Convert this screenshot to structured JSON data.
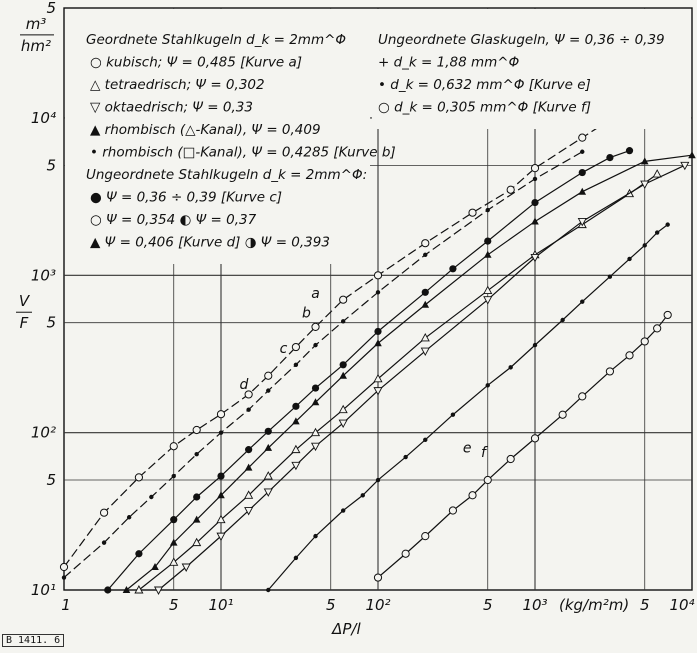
{
  "chart_data": {
    "type": "scatter",
    "xscale": "log",
    "yscale": "log",
    "xlim": [
      1,
      10000
    ],
    "ylim": [
      10,
      50000
    ],
    "grid": true,
    "xlabel": "ΔP/l",
    "xunit": "(kg/m²m)",
    "ylabel_top": "V",
    "ylabel_bottom": "F",
    "yunit_num": "m³",
    "yunit_den": "hm²",
    "x_ticks": [
      {
        "v": 1,
        "t": "1"
      },
      {
        "v": 5,
        "t": "5"
      },
      {
        "v": 10,
        "t": "10¹"
      },
      {
        "v": 50,
        "t": "5"
      },
      {
        "v": 100,
        "t": "10²"
      },
      {
        "v": 500,
        "t": "5"
      },
      {
        "v": 1000,
        "t": "10³"
      },
      {
        "v": 5000,
        "t": "5"
      },
      {
        "v": 10000,
        "t": "10⁴"
      }
    ],
    "y_ticks": [
      {
        "v": 10,
        "t": "10¹"
      },
      {
        "v": 50,
        "t": "5"
      },
      {
        "v": 100,
        "t": "10²"
      },
      {
        "v": 500,
        "t": "5"
      },
      {
        "v": 1000,
        "t": "10³"
      },
      {
        "v": 5000,
        "t": "5"
      },
      {
        "v": 10000,
        "t": "10⁴"
      },
      {
        "v": 50000,
        "t": "5"
      }
    ],
    "series": [
      {
        "name": "Kurve a",
        "marker": "open-circle",
        "line": "dashed",
        "x": [
          1,
          1.8,
          3,
          5,
          7,
          10,
          15,
          20,
          30,
          40,
          60,
          100,
          200,
          400,
          700,
          1000,
          2000,
          5000
        ],
        "y": [
          14,
          31,
          52,
          82,
          104,
          131,
          175,
          230,
          350,
          470,
          700,
          1000,
          1600,
          2500,
          3500,
          4800,
          7500,
          13500
        ]
      },
      {
        "name": "Kurve b",
        "marker": "dot",
        "line": "dashed",
        "x": [
          1,
          1.8,
          2.6,
          3.6,
          5,
          7,
          10,
          15,
          20,
          30,
          40,
          60,
          100,
          200,
          500,
          1000,
          2000
        ],
        "y": [
          12,
          20,
          29,
          39,
          53,
          73,
          100,
          140,
          185,
          270,
          360,
          510,
          780,
          1350,
          2600,
          4100,
          6100
        ]
      },
      {
        "name": "Kurve c",
        "marker": "filled-circle",
        "line": "solid",
        "x": [
          1.9,
          3,
          5,
          7,
          10,
          15,
          20,
          30,
          40,
          60,
          100,
          200,
          300,
          500,
          1000,
          2000,
          3000,
          4000
        ],
        "y": [
          10,
          17,
          28,
          39,
          53,
          78,
          102,
          147,
          192,
          270,
          440,
          780,
          1100,
          1650,
          2900,
          4500,
          5600,
          6200
        ]
      },
      {
        "name": "Kurve d",
        "marker": "filled-triangle",
        "line": "solid",
        "x": [
          2.5,
          3.8,
          5,
          7,
          10,
          15,
          20,
          30,
          40,
          60,
          100,
          200,
          500,
          1000,
          2000,
          5000,
          10000
        ],
        "y": [
          10,
          14,
          20,
          28,
          40,
          60,
          80,
          118,
          156,
          230,
          370,
          650,
          1350,
          2200,
          3400,
          5300,
          5800
        ]
      },
      {
        "name": "",
        "marker": "open-triangle",
        "line": "solid",
        "x": [
          3,
          5,
          7,
          10,
          15,
          20,
          30,
          40,
          60,
          100,
          200,
          500,
          1000,
          2000,
          4000,
          6000
        ],
        "y": [
          10,
          15,
          20,
          28,
          40,
          53,
          78,
          100,
          140,
          220,
          400,
          800,
          1350,
          2100,
          3300,
          4400
        ]
      },
      {
        "name": "",
        "marker": "open-triangle-down",
        "line": "solid",
        "x": [
          4,
          6,
          10,
          15,
          20,
          30,
          40,
          60,
          100,
          200,
          500,
          1000,
          2000,
          5000,
          9000
        ],
        "y": [
          10,
          14,
          22,
          32,
          42,
          62,
          82,
          115,
          185,
          330,
          700,
          1300,
          2200,
          3800,
          5000
        ]
      },
      {
        "name": "Kurve e",
        "marker": "dot",
        "line": "solid",
        "x": [
          20,
          30,
          40,
          60,
          80,
          100,
          150,
          200,
          300,
          500,
          700,
          1000,
          1500,
          2000,
          3000,
          4000,
          5000,
          6000,
          7000
        ],
        "y": [
          10,
          16,
          22,
          32,
          40,
          50,
          70,
          90,
          130,
          200,
          260,
          360,
          520,
          680,
          980,
          1270,
          1550,
          1870,
          2100
        ]
      },
      {
        "name": "Kurve f",
        "marker": "open-circle",
        "line": "solid",
        "x": [
          100,
          150,
          200,
          300,
          400,
          500,
          700,
          1000,
          1500,
          2000,
          3000,
          4000,
          5000,
          6000,
          7000
        ],
        "y": [
          12,
          17,
          22,
          32,
          40,
          50,
          68,
          92,
          130,
          170,
          245,
          310,
          380,
          460,
          560
        ]
      }
    ],
    "curve_labels": [
      {
        "t": "a",
        "x": 40,
        "y": 720
      },
      {
        "t": "b",
        "x": 35,
        "y": 540
      },
      {
        "t": "c",
        "x": 25,
        "y": 320
      },
      {
        "t": "d",
        "x": 14,
        "y": 190
      },
      {
        "t": "e",
        "x": 370,
        "y": 75
      },
      {
        "t": "f",
        "x": 470,
        "y": 70
      }
    ],
    "legend_left": [
      "Geordnete Stahlkugeln d_k = 2mm^Φ",
      "○ kubisch; Ψ = 0,485 [Kurve a]",
      "△ tetraedrisch; Ψ = 0,302",
      "▽ oktaedrisch; Ψ = 0,33",
      "▲ rhombisch (△-Kanal), Ψ = 0,409",
      "• rhombisch (□-Kanal), Ψ = 0,4285 [Kurve b]",
      "Ungeordnete Stahlkugeln d_k = 2mm^Φ:",
      "● Ψ = 0,36 ÷ 0,39 [Kurve c]",
      "○ Ψ = 0,354          ◐ Ψ = 0,37",
      "▲ Ψ = 0,406 [Kurve d]   ◑ Ψ = 0,393"
    ],
    "legend_right": [
      "Ungeordnete Glaskugeln, Ψ = 0,36 ÷ 0,39",
      "+ d_k = 1,88 mm^Φ",
      "• d_k = 0,632 mm^Φ [Kurve e]",
      "○ d_k = 0,305 mm^Φ [Kurve f]"
    ]
  },
  "figure_code": "B 1411. 6"
}
